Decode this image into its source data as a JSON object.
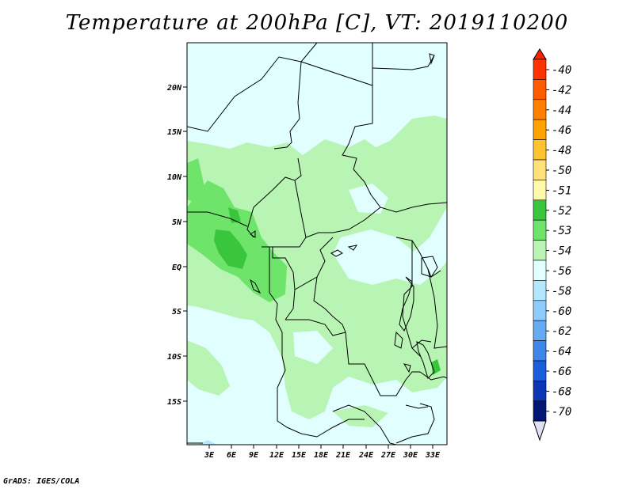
{
  "title": "Temperature at 200hPa [C], VT: 2019110200",
  "credit": "GrADS: IGES/COLA",
  "axes": {
    "y_ticks": [
      "20N",
      "15N",
      "10N",
      "5N",
      "EQ",
      "5S",
      "10S",
      "15S"
    ],
    "x_ticks": [
      "3E",
      "6E",
      "9E",
      "12E",
      "15E",
      "18E",
      "21E",
      "24E",
      "27E",
      "30E",
      "33E"
    ]
  },
  "colorbar": {
    "labels": [
      "-40",
      "-42",
      "-44",
      "-46",
      "-48",
      "-50",
      "-51",
      "-52",
      "-53",
      "-54",
      "-56",
      "-58",
      "-60",
      "-62",
      "-64",
      "-66",
      "-68",
      "-70"
    ],
    "colors": [
      "#ff3300",
      "#ff5a00",
      "#ff8000",
      "#ffa300",
      "#ffc332",
      "#ffe079",
      "#fffaaa",
      "#39c63c",
      "#6fe46b",
      "#b8f5b4",
      "#e1fffe",
      "#b1e8ff",
      "#8ecbff",
      "#66a9f5",
      "#3f86ea",
      "#1a5ede",
      "#0c37b4",
      "#021676"
    ],
    "top_color": "#ff2000",
    "bottom_color": "#e0e0f5"
  },
  "legend_colors": {
    "map_background": "#e1fffe",
    "level_53": "#b8f5b4",
    "level_52": "#6fe46b",
    "level_51": "#39c63c",
    "level_56": "#b1e8ff"
  }
}
